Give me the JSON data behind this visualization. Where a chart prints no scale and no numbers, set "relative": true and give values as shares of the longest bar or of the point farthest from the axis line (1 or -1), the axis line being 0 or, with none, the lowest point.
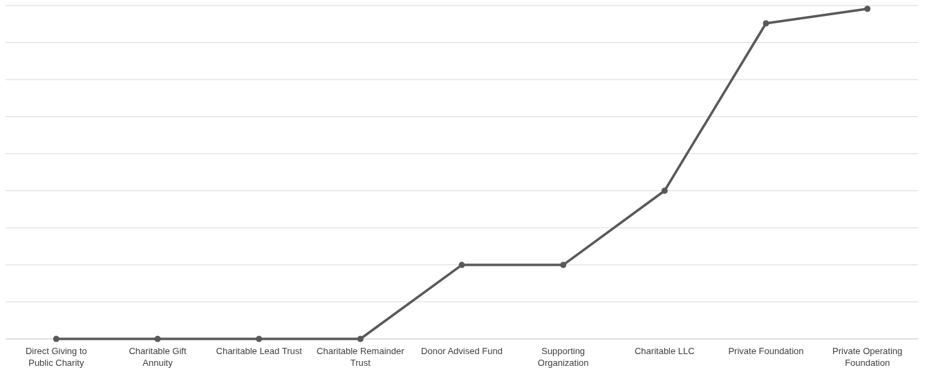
{
  "chart_data": {
    "type": "line",
    "relative": true,
    "grid": "y",
    "marker": "circle",
    "categories": [
      "Direct Giving to Public Charity",
      "Charitable Gift Annuity",
      "Charitable Lead Trust",
      "Charitable Remainder Trust",
      "Donor Advised Fund",
      "Supporting Organization",
      "Charitable LLC",
      "Private Foundation",
      "Private Operating Foundation"
    ],
    "series": [
      {
        "color": "#595959",
        "values": [
          0,
          0,
          0,
          0,
          0.224,
          0.224,
          0.449,
          0.956,
          1
        ]
      }
    ]
  }
}
